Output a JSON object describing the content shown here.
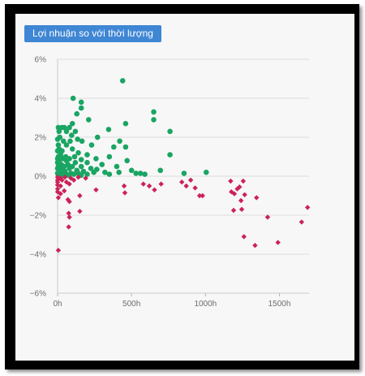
{
  "chart_data": {
    "type": "scatter",
    "title": "Lợi nhuận so với thời lượng",
    "xlabel": "",
    "ylabel": "",
    "xlim": [
      0,
      1700
    ],
    "ylim": [
      -6,
      6
    ],
    "x_ticks": [
      "0h",
      "500h",
      "1000h",
      "1500h"
    ],
    "x_tick_values": [
      0,
      500,
      1000,
      1500
    ],
    "y_ticks": [
      "6%",
      "4%",
      "2%",
      "0%",
      "−2%",
      "−4%",
      "−6%"
    ],
    "y_tick_values": [
      6,
      4,
      2,
      0,
      -2,
      -4,
      -6
    ],
    "grid": true,
    "series": [
      {
        "color": "#1aa562",
        "marker": "circle",
        "points": [
          [
            440,
            4.9
          ],
          [
            105,
            4.0
          ],
          [
            160,
            3.8
          ],
          [
            650,
            3.3
          ],
          [
            160,
            3.5
          ],
          [
            130,
            3.2
          ],
          [
            210,
            2.9
          ],
          [
            650,
            2.9
          ],
          [
            460,
            2.7
          ],
          [
            100,
            2.7
          ],
          [
            5,
            2.5
          ],
          [
            30,
            2.5
          ],
          [
            45,
            2.5
          ],
          [
            80,
            2.5
          ],
          [
            760,
            2.3
          ],
          [
            345,
            2.4
          ],
          [
            10,
            2.3
          ],
          [
            60,
            2.3
          ],
          [
            120,
            2.3
          ],
          [
            95,
            2.1
          ],
          [
            15,
            2.0
          ],
          [
            270,
            2.0
          ],
          [
            135,
            1.9
          ],
          [
            0,
            1.9
          ],
          [
            40,
            1.8
          ],
          [
            85,
            1.8
          ],
          [
            165,
            1.8
          ],
          [
            420,
            1.8
          ],
          [
            5,
            1.6
          ],
          [
            60,
            1.6
          ],
          [
            230,
            1.6
          ],
          [
            380,
            1.5
          ],
          [
            460,
            1.5
          ],
          [
            10,
            1.4
          ],
          [
            100,
            1.4
          ],
          [
            0,
            1.3
          ],
          [
            30,
            1.3
          ],
          [
            140,
            1.2
          ],
          [
            760,
            1.1
          ],
          [
            20,
            1.1
          ],
          [
            200,
            1.1
          ],
          [
            5,
            1.0
          ],
          [
            55,
            1.0
          ],
          [
            115,
            1.0
          ],
          [
            350,
            1.0
          ],
          [
            0,
            0.9
          ],
          [
            35,
            0.9
          ],
          [
            80,
            0.9
          ],
          [
            260,
            0.9
          ],
          [
            160,
            0.85
          ],
          [
            10,
            0.8
          ],
          [
            60,
            0.8
          ],
          [
            470,
            0.8
          ],
          [
            0,
            0.7
          ],
          [
            120,
            0.7
          ],
          [
            200,
            0.7
          ],
          [
            25,
            0.6
          ],
          [
            70,
            0.6
          ],
          [
            300,
            0.6
          ],
          [
            5,
            0.5
          ],
          [
            45,
            0.5
          ],
          [
            100,
            0.5
          ],
          [
            160,
            0.5
          ],
          [
            400,
            0.5
          ],
          [
            0,
            0.4
          ],
          [
            20,
            0.4
          ],
          [
            80,
            0.4
          ],
          [
            225,
            0.4
          ],
          [
            265,
            0.35
          ],
          [
            35,
            0.3
          ],
          [
            130,
            0.3
          ],
          [
            500,
            0.3
          ],
          [
            695,
            0.3
          ],
          [
            10,
            0.25
          ],
          [
            50,
            0.25
          ],
          [
            175,
            0.25
          ],
          [
            245,
            0.2
          ],
          [
            320,
            0.2
          ],
          [
            415,
            0.2
          ],
          [
            0,
            0.15
          ],
          [
            90,
            0.15
          ],
          [
            140,
            0.15
          ],
          [
            530,
            0.15
          ],
          [
            560,
            0.15
          ],
          [
            855,
            0.15
          ],
          [
            1005,
            0.2
          ],
          [
            25,
            0.1
          ],
          [
            60,
            0.1
          ],
          [
            110,
            0.1
          ],
          [
            200,
            0.1
          ],
          [
            350,
            0.1
          ],
          [
            590,
            0.1
          ],
          [
            5,
            0.05
          ],
          [
            40,
            0.05
          ],
          [
            75,
            0.05
          ],
          [
            160,
            0.05
          ]
        ]
      },
      {
        "color": "#cc2257",
        "marker": "diamond",
        "points": [
          [
            0,
            -0.05
          ],
          [
            20,
            -0.1
          ],
          [
            50,
            -0.05
          ],
          [
            90,
            -0.1
          ],
          [
            140,
            -0.05
          ],
          [
            190,
            -0.1
          ],
          [
            0,
            -0.2
          ],
          [
            30,
            -0.2
          ],
          [
            110,
            -0.2
          ],
          [
            0,
            -0.3
          ],
          [
            60,
            -0.3
          ],
          [
            0,
            -0.45
          ],
          [
            20,
            -0.5
          ],
          [
            80,
            -0.4
          ],
          [
            0,
            -0.65
          ],
          [
            45,
            -0.75
          ],
          [
            0,
            -0.8
          ],
          [
            20,
            -0.9
          ],
          [
            5,
            -1.1
          ],
          [
            70,
            -1.2
          ],
          [
            80,
            -1.3
          ],
          [
            150,
            -1.0
          ],
          [
            260,
            -0.7
          ],
          [
            450,
            -0.5
          ],
          [
            455,
            -0.85
          ],
          [
            580,
            -0.4
          ],
          [
            620,
            -0.5
          ],
          [
            655,
            -0.7
          ],
          [
            700,
            -0.4
          ],
          [
            840,
            -0.3
          ],
          [
            870,
            -0.5
          ],
          [
            900,
            -0.2
          ],
          [
            930,
            -0.6
          ],
          [
            960,
            -1.0
          ],
          [
            980,
            -1.0
          ],
          [
            1170,
            -0.25
          ],
          [
            1175,
            -0.8
          ],
          [
            1195,
            -0.9
          ],
          [
            1215,
            -0.65
          ],
          [
            1230,
            -0.55
          ],
          [
            1240,
            -1.25
          ],
          [
            1255,
            -0.25
          ],
          [
            1265,
            -0.95
          ],
          [
            1190,
            -1.75
          ],
          [
            1245,
            -1.7
          ],
          [
            1345,
            -1.1
          ],
          [
            150,
            -1.8
          ],
          [
            75,
            -1.9
          ],
          [
            80,
            -2.1
          ],
          [
            75,
            -2.6
          ],
          [
            1420,
            -2.1
          ],
          [
            1650,
            -2.35
          ],
          [
            1690,
            -1.6
          ],
          [
            1260,
            -3.1
          ],
          [
            1335,
            -3.55
          ],
          [
            1490,
            -3.4
          ],
          [
            5,
            -3.8
          ]
        ]
      }
    ]
  }
}
